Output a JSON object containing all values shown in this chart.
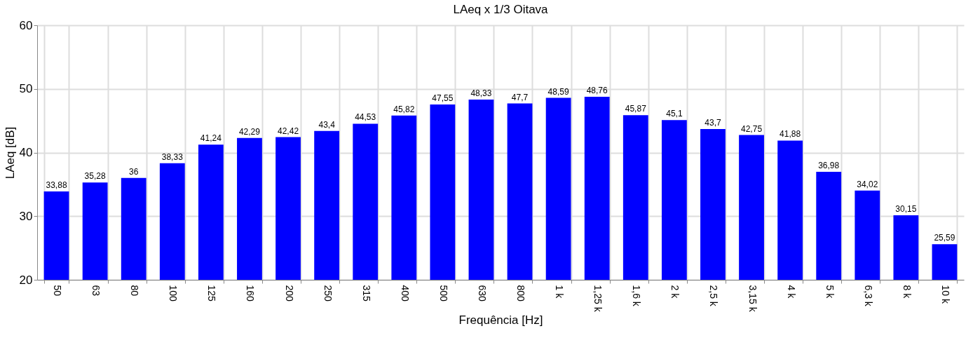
{
  "chart_data": {
    "type": "bar",
    "title": "LAeq x 1/3 Oitava",
    "xlabel": "Frequência [Hz]",
    "ylabel": "LAeq [dB]",
    "categories": [
      "50",
      "63",
      "80",
      "100",
      "125",
      "160",
      "200",
      "250",
      "315",
      "400",
      "500",
      "630",
      "800",
      "1 k",
      "1,25 k",
      "1,6 k",
      "2 k",
      "2,5 k",
      "3,15 k",
      "4 k",
      "5 k",
      "6,3 k",
      "8 k",
      "10 k"
    ],
    "values": [
      33.88,
      35.28,
      36,
      38.33,
      41.24,
      42.29,
      42.42,
      43.4,
      44.53,
      45.82,
      47.55,
      48.33,
      47.7,
      48.59,
      48.76,
      45.87,
      45.1,
      43.7,
      42.75,
      41.88,
      36.98,
      34.02,
      30.15,
      25.59
    ],
    "value_labels": [
      "33,88",
      "35,28",
      "36",
      "38,33",
      "41,24",
      "42,29",
      "42,42",
      "43,4",
      "44,53",
      "45,82",
      "47,55",
      "48,33",
      "47,7",
      "48,59",
      "48,76",
      "45,87",
      "45,1",
      "43,7",
      "42,75",
      "41,88",
      "36,98",
      "34,02",
      "30,15",
      "25,59"
    ],
    "color": "#0000ff",
    "ylim": [
      20,
      60
    ],
    "yticks": [
      20,
      30,
      40,
      50,
      60
    ],
    "grid": true
  }
}
